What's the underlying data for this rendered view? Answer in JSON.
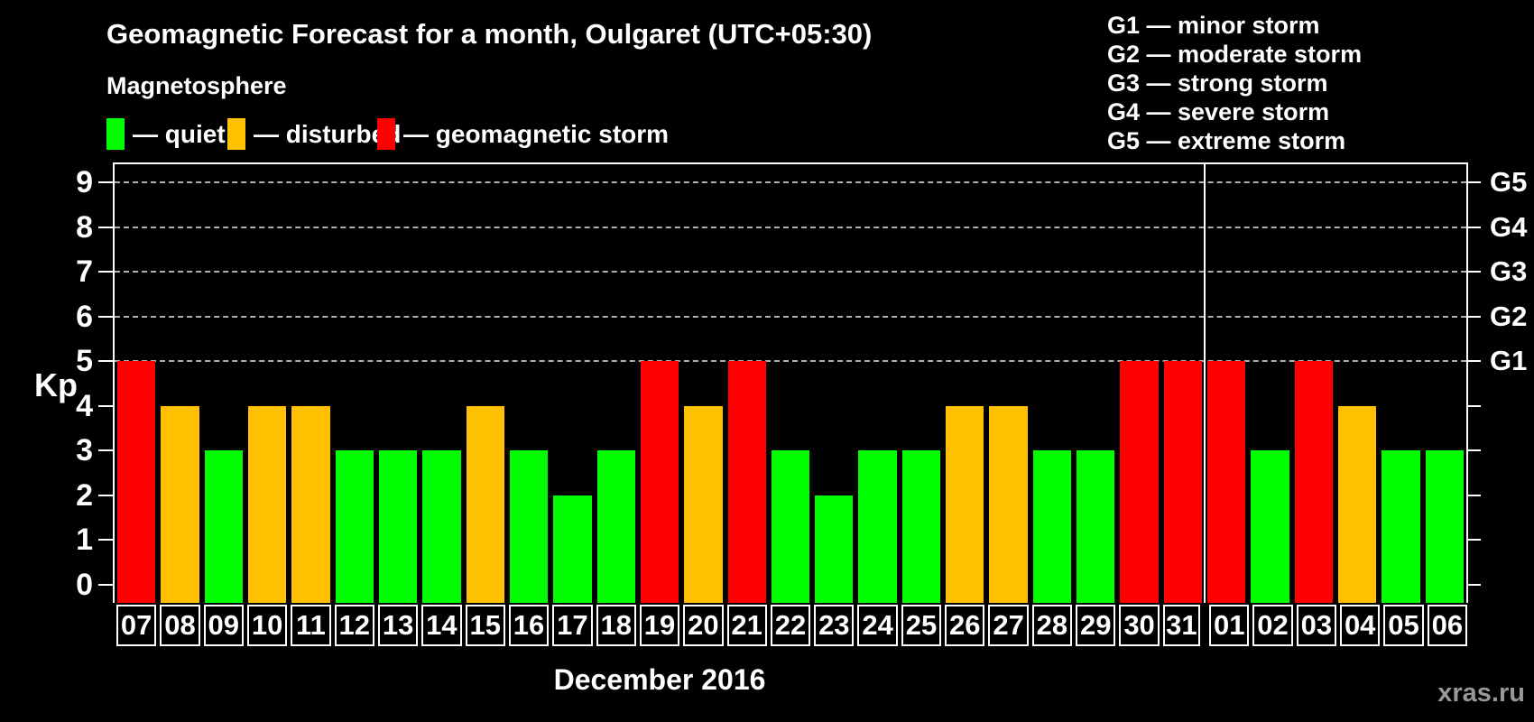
{
  "title": "Geomagnetic Forecast for a month, Oulgaret (UTC+05:30)",
  "subtitle": "Magnetosphere",
  "legend": {
    "items": [
      {
        "name": "quiet",
        "label": "— quiet",
        "color": "#00ff00"
      },
      {
        "name": "disturbed",
        "label": "— disturbed",
        "color": "#ffc000"
      },
      {
        "name": "geomagnetic-storm",
        "label": "— geomagnetic storm",
        "color": "#ff0000"
      }
    ]
  },
  "storm_scale_legend": [
    "G1 — minor storm",
    "G2 — moderate storm",
    "G3 — strong storm",
    "G4 — severe storm",
    "G5 — extreme storm"
  ],
  "y_axis": {
    "label": "Kp",
    "ticks": [
      0,
      1,
      2,
      3,
      4,
      5,
      6,
      7,
      8,
      9
    ]
  },
  "right_axis": {
    "labels": [
      {
        "level": 5,
        "label": "G1"
      },
      {
        "level": 6,
        "label": "G2"
      },
      {
        "level": 7,
        "label": "G3"
      },
      {
        "level": 8,
        "label": "G4"
      },
      {
        "level": 9,
        "label": "G5"
      }
    ]
  },
  "x_axis": {
    "month_label": "December 2016"
  },
  "watermark": "xras.ru",
  "chart_data": {
    "type": "bar",
    "title": "Geomagnetic Forecast for a month, Oulgaret (UTC+05:30)",
    "xlabel": "December 2016",
    "ylabel": "Kp",
    "ylim": [
      0,
      9
    ],
    "grid": "dashed horizontal lines at Kp 5-9 (G1-G5)",
    "gridlines_at": [
      5,
      6,
      7,
      8,
      9
    ],
    "legend_position": "top-left",
    "month_boundary_after_index": 24,
    "categories": [
      "07",
      "08",
      "09",
      "10",
      "11",
      "12",
      "13",
      "14",
      "15",
      "16",
      "17",
      "18",
      "19",
      "20",
      "21",
      "22",
      "23",
      "24",
      "25",
      "26",
      "27",
      "28",
      "29",
      "30",
      "31",
      "01",
      "02",
      "03",
      "04",
      "05",
      "06"
    ],
    "values": [
      5,
      4,
      3,
      4,
      4,
      3,
      3,
      3,
      4,
      3,
      2,
      3,
      5,
      4,
      5,
      3,
      2,
      3,
      3,
      4,
      4,
      3,
      3,
      5,
      5,
      5,
      3,
      5,
      4,
      3,
      3
    ],
    "statuses": [
      "storm",
      "disturbed",
      "quiet",
      "disturbed",
      "disturbed",
      "quiet",
      "quiet",
      "quiet",
      "disturbed",
      "quiet",
      "quiet",
      "quiet",
      "storm",
      "disturbed",
      "storm",
      "quiet",
      "quiet",
      "quiet",
      "quiet",
      "disturbed",
      "disturbed",
      "quiet",
      "quiet",
      "storm",
      "storm",
      "storm",
      "quiet",
      "storm",
      "disturbed",
      "quiet",
      "quiet"
    ],
    "colors": {
      "quiet": "#00ff00",
      "disturbed": "#ffc000",
      "storm": "#ff0000"
    }
  }
}
